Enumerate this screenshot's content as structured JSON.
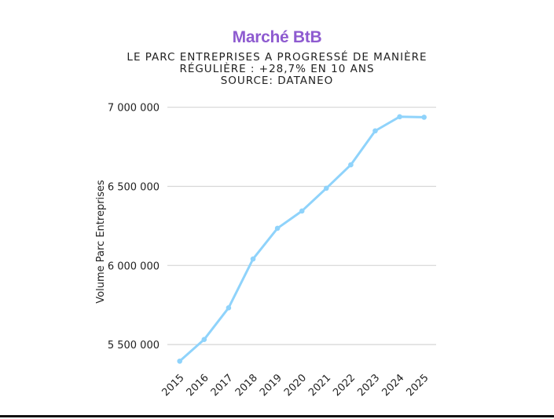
{
  "chart_data": {
    "type": "line",
    "title": "Marché BtB",
    "subtitle_lines": [
      "LE PARC ENTREPRISES A PROGRESSÉ DE MANIÈRE",
      "RÉGULIÈRE : +28,7% EN 10 ANS",
      "SOURCE: DATANEO"
    ],
    "xlabel": "",
    "ylabel": "Volume Parc Entreprises",
    "categories": [
      "2015",
      "2016",
      "2017",
      "2018",
      "2019",
      "2020",
      "2021",
      "2022",
      "2023",
      "2024",
      "2025"
    ],
    "values": [
      5395000,
      5532000,
      5732000,
      6041000,
      6235000,
      6344000,
      6488000,
      6636000,
      6851000,
      6940000,
      6937000
    ],
    "yticks": [
      5500000,
      6000000,
      6500000,
      7000000
    ],
    "ytick_labels": [
      "5 500 000",
      "6 000 000",
      "6 500 000",
      "7 000 000"
    ],
    "ylim": [
      5390000,
      7000000
    ],
    "grid": true,
    "legend": "none",
    "line_color": "#8fd3fb",
    "title_color": "#8e5bd0"
  }
}
